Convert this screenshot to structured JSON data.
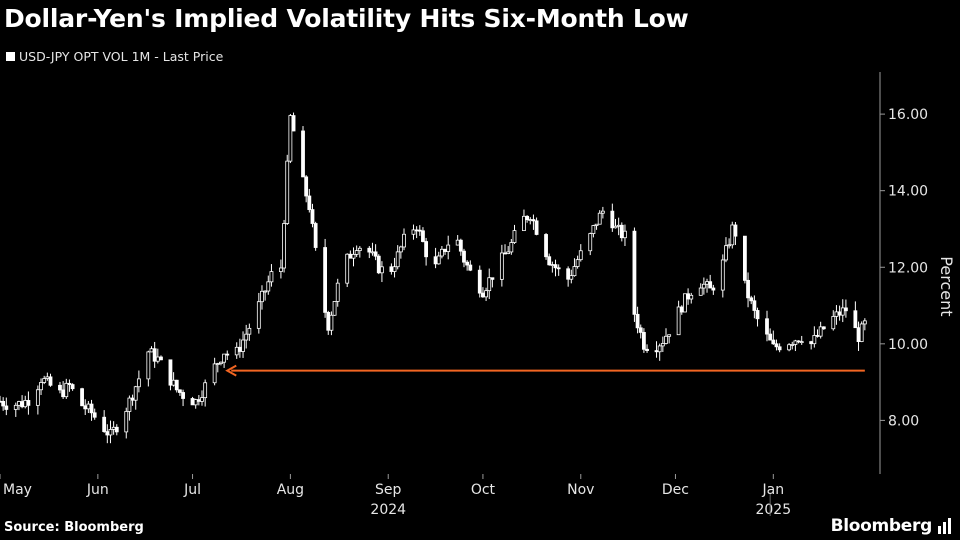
{
  "page": {
    "title": "Dollar-Yen's Implied Volatility Hits Six-Month Low",
    "source": "Source: Bloomberg",
    "brand": "Bloomberg"
  },
  "colors": {
    "background": "#000000",
    "candle": "#ffffff",
    "annotation_arrow": "#f26522",
    "axis_text": "#e6e6e6"
  },
  "chart_data": {
    "type": "candlestick",
    "legend": [
      {
        "name": "USD-JPY OPT VOL 1M - Last Price",
        "color": "#ffffff"
      }
    ],
    "ylabel": "Percent",
    "ylim": [
      6.6,
      17.1
    ],
    "yticks": [
      8.0,
      10.0,
      12.0,
      14.0,
      16.0
    ],
    "ytick_labels": [
      "8.00",
      "10.00",
      "12.00",
      "14.00",
      "16.00"
    ],
    "axis_side": "right",
    "xlim": [
      "2024-05-01",
      "2025-01-31"
    ],
    "xticks": [
      {
        "date": "2024-05-01",
        "label": "May"
      },
      {
        "date": "2024-06-01",
        "label": "Jun"
      },
      {
        "date": "2024-07-01",
        "label": "Jul"
      },
      {
        "date": "2024-08-01",
        "label": "Aug"
      },
      {
        "date": "2024-09-01",
        "label": "Sep"
      },
      {
        "date": "2024-10-01",
        "label": "Oct"
      },
      {
        "date": "2024-11-01",
        "label": "Nov"
      },
      {
        "date": "2024-12-01",
        "label": "Dec"
      },
      {
        "date": "2025-01-01",
        "label": "Jan"
      }
    ],
    "year_labels": [
      {
        "date": "2024-09-01",
        "label": "2024"
      },
      {
        "date": "2025-01-01",
        "label": "2025"
      }
    ],
    "year_divider": "2024-12-31",
    "path": [
      [
        "2024-05-01",
        8.5
      ],
      [
        "2024-05-04",
        8.4
      ],
      [
        "2024-05-08",
        8.45
      ],
      [
        "2024-05-11",
        8.6
      ],
      [
        "2024-05-14",
        9.1
      ],
      [
        "2024-05-17",
        8.9
      ],
      [
        "2024-05-20",
        8.7
      ],
      [
        "2024-05-23",
        8.9
      ],
      [
        "2024-05-27",
        8.4
      ],
      [
        "2024-05-30",
        8.2
      ],
      [
        "2024-06-02",
        7.9
      ],
      [
        "2024-06-05",
        7.6
      ],
      [
        "2024-06-08",
        8.0
      ],
      [
        "2024-06-11",
        8.5
      ],
      [
        "2024-06-14",
        9.1
      ],
      [
        "2024-06-17",
        9.8
      ],
      [
        "2024-06-20",
        9.6
      ],
      [
        "2024-06-23",
        9.2
      ],
      [
        "2024-06-26",
        8.8
      ],
      [
        "2024-06-29",
        8.6
      ],
      [
        "2024-07-02",
        8.5
      ],
      [
        "2024-07-05",
        8.9
      ],
      [
        "2024-07-08",
        9.4
      ],
      [
        "2024-07-11",
        9.8
      ],
      [
        "2024-07-14",
        9.6
      ],
      [
        "2024-07-17",
        10.1
      ],
      [
        "2024-07-20",
        10.6
      ],
      [
        "2024-07-23",
        11.2
      ],
      [
        "2024-07-26",
        11.8
      ],
      [
        "2024-07-29",
        12.0
      ],
      [
        "2024-08-01",
        15.9
      ],
      [
        "2024-08-03",
        15.2
      ],
      [
        "2024-08-05",
        14.2
      ],
      [
        "2024-08-07",
        13.6
      ],
      [
        "2024-08-09",
        12.4
      ],
      [
        "2024-08-11",
        11.2
      ],
      [
        "2024-08-13",
        10.5
      ],
      [
        "2024-08-16",
        11.5
      ],
      [
        "2024-08-19",
        12.2
      ],
      [
        "2024-08-22",
        12.6
      ],
      [
        "2024-08-26",
        12.4
      ],
      [
        "2024-08-29",
        12.0
      ],
      [
        "2024-09-01",
        11.8
      ],
      [
        "2024-09-04",
        12.3
      ],
      [
        "2024-09-07",
        12.9
      ],
      [
        "2024-09-10",
        13.1
      ],
      [
        "2024-09-13",
        12.4
      ],
      [
        "2024-09-16",
        12.0
      ],
      [
        "2024-09-19",
        12.5
      ],
      [
        "2024-09-22",
        12.9
      ],
      [
        "2024-09-25",
        12.2
      ],
      [
        "2024-09-28",
        11.7
      ],
      [
        "2024-10-01",
        11.4
      ],
      [
        "2024-10-04",
        11.8
      ],
      [
        "2024-10-07",
        12.2
      ],
      [
        "2024-10-10",
        12.6
      ],
      [
        "2024-10-13",
        13.2
      ],
      [
        "2024-10-16",
        13.4
      ],
      [
        "2024-10-19",
        12.8
      ],
      [
        "2024-10-22",
        12.2
      ],
      [
        "2024-10-25",
        11.9
      ],
      [
        "2024-10-28",
        11.7
      ],
      [
        "2024-10-31",
        12.2
      ],
      [
        "2024-11-03",
        12.6
      ],
      [
        "2024-11-06",
        13.2
      ],
      [
        "2024-11-09",
        13.6
      ],
      [
        "2024-11-12",
        13.0
      ],
      [
        "2024-11-15",
        12.8
      ],
      [
        "2024-11-18",
        10.8
      ],
      [
        "2024-11-21",
        10.0
      ],
      [
        "2024-11-24",
        9.9
      ],
      [
        "2024-11-27",
        10.1
      ],
      [
        "2024-11-30",
        10.5
      ],
      [
        "2024-12-03",
        11.0
      ],
      [
        "2024-12-06",
        11.4
      ],
      [
        "2024-12-09",
        11.6
      ],
      [
        "2024-12-12",
        11.4
      ],
      [
        "2024-12-15",
        11.8
      ],
      [
        "2024-12-17",
        12.4
      ],
      [
        "2024-12-19",
        13.0
      ],
      [
        "2024-12-21",
        12.8
      ],
      [
        "2024-12-23",
        11.5
      ],
      [
        "2024-12-26",
        10.8
      ],
      [
        "2024-12-29",
        10.3
      ],
      [
        "2025-01-01",
        9.9
      ],
      [
        "2025-01-04",
        10.0
      ],
      [
        "2025-01-07",
        10.1
      ],
      [
        "2025-01-10",
        10.2
      ],
      [
        "2025-01-13",
        10.0
      ],
      [
        "2025-01-16",
        10.3
      ],
      [
        "2025-01-19",
        10.6
      ],
      [
        "2025-01-22",
        10.8
      ],
      [
        "2025-01-24",
        10.9
      ],
      [
        "2025-01-26",
        10.5
      ],
      [
        "2025-01-28",
        10.2
      ],
      [
        "2025-01-30",
        10.5
      ]
    ],
    "annotations": [
      {
        "type": "arrow",
        "from": [
          "2025-01-30",
          9.3
        ],
        "to": [
          "2024-07-12",
          9.3
        ],
        "color": "#f26522"
      }
    ]
  }
}
